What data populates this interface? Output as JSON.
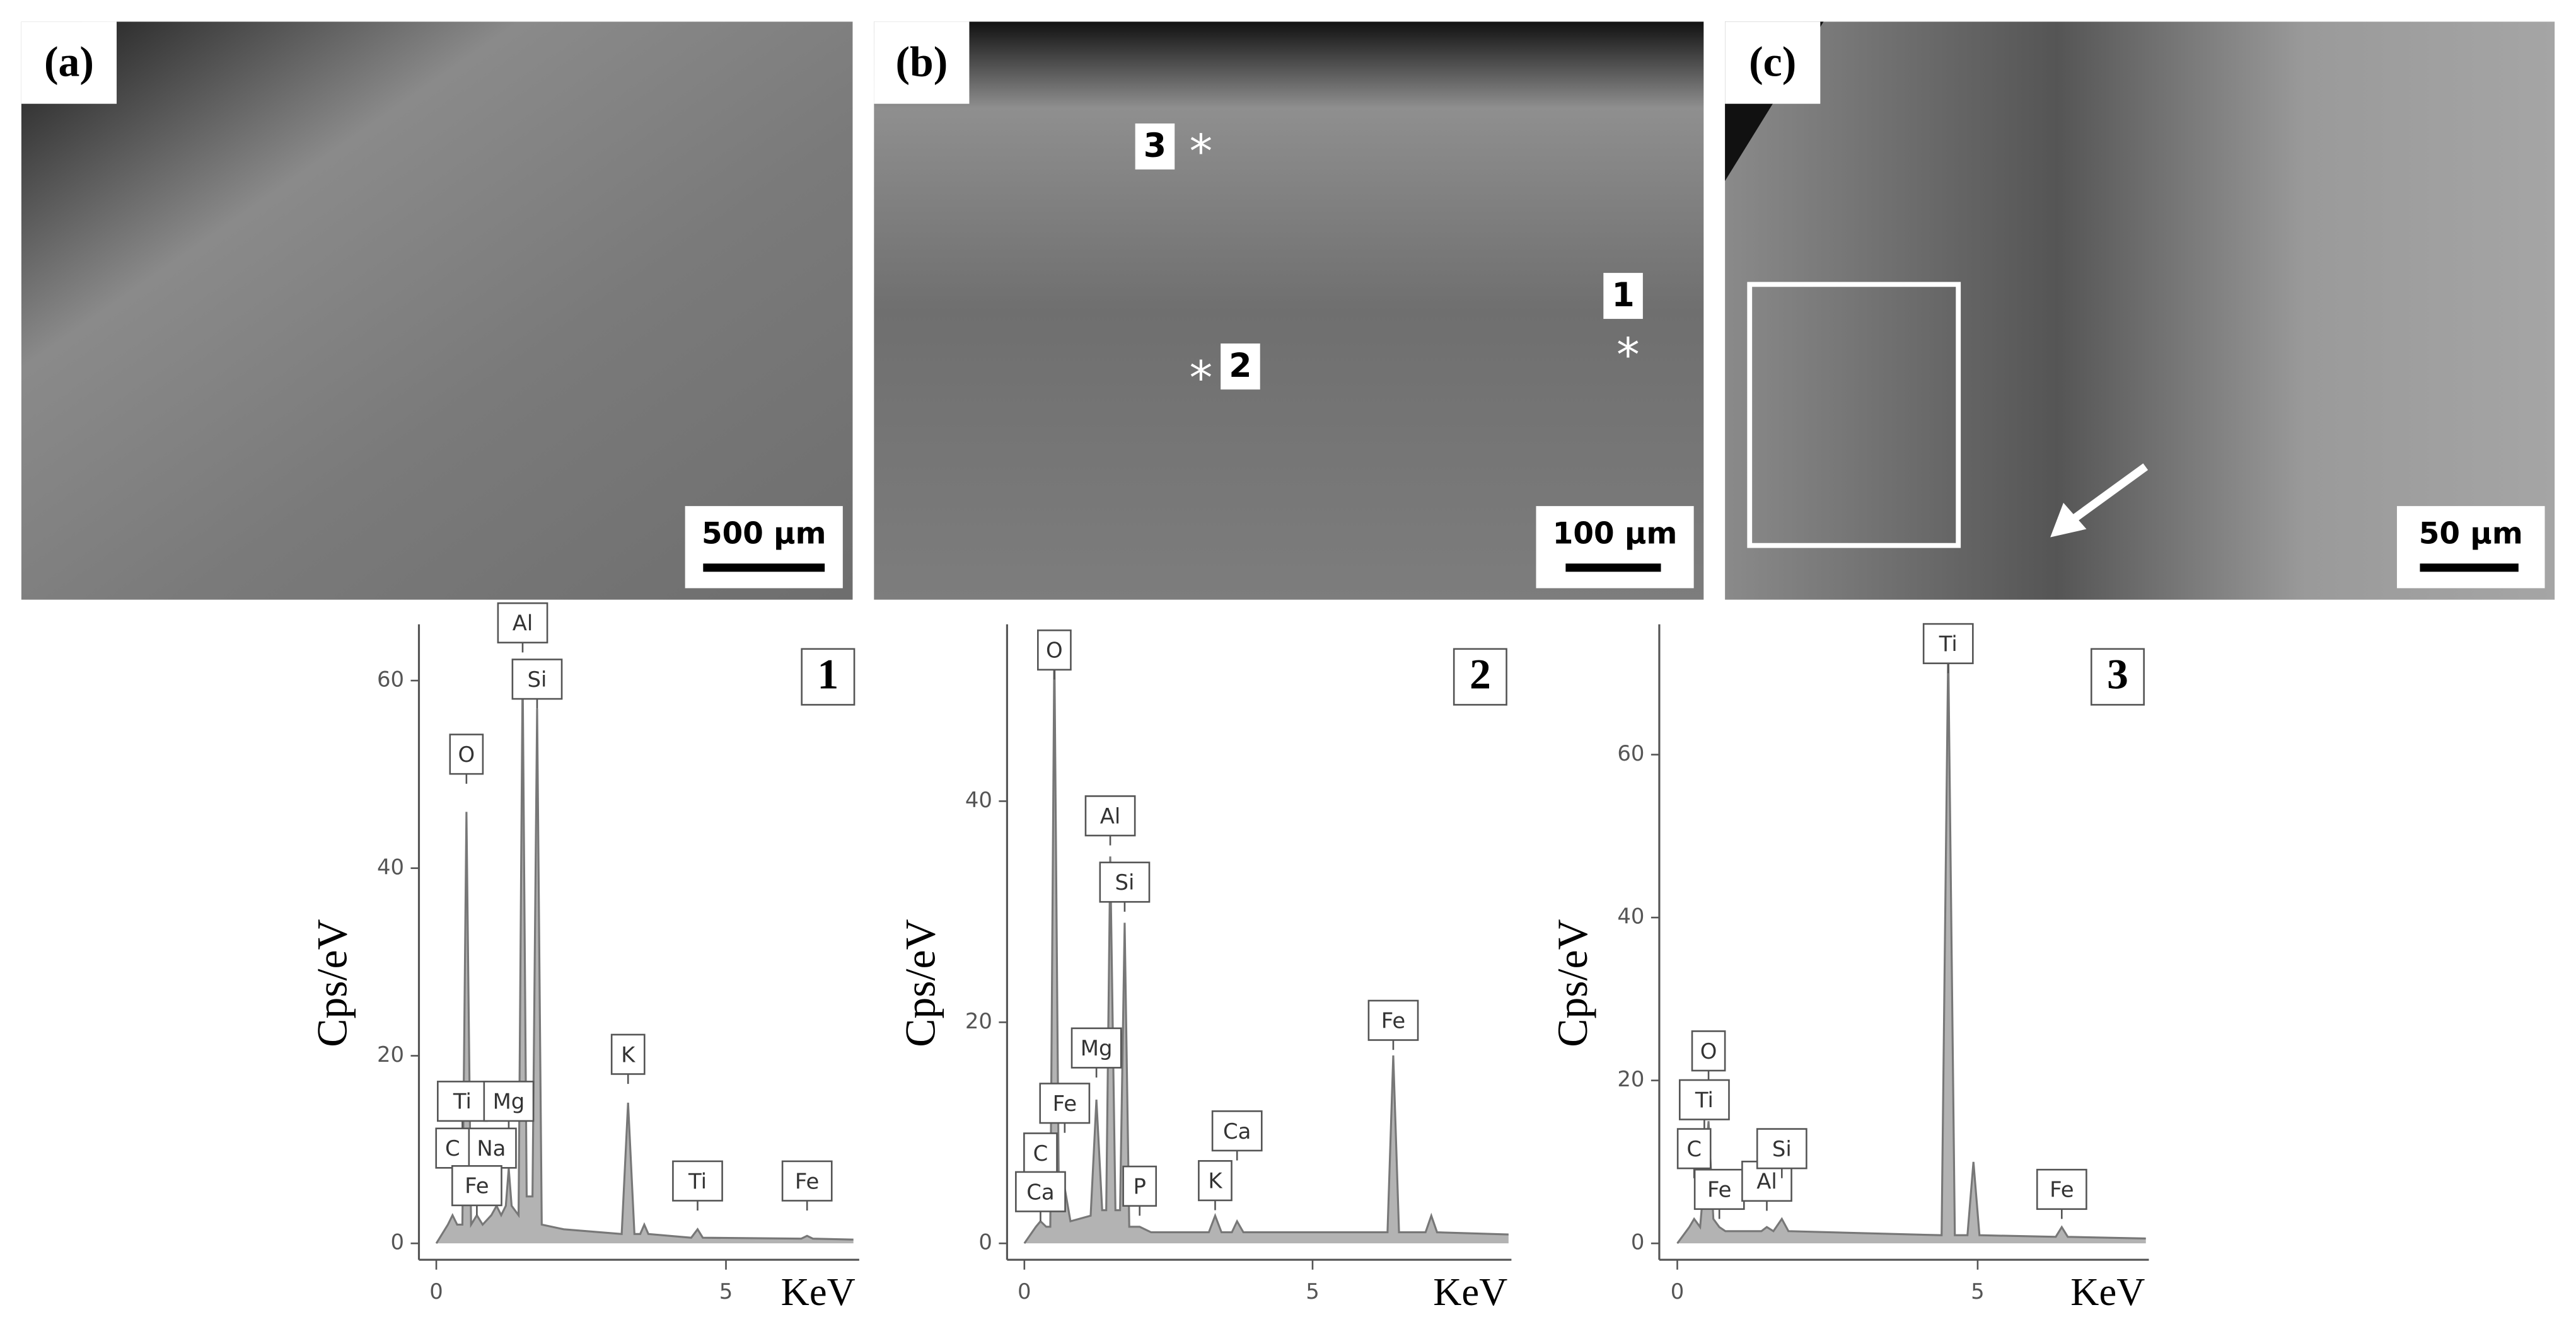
{
  "images": [
    {
      "label": "(a)",
      "scale_bar": "500 µm"
    },
    {
      "label": "(b)",
      "scale_bar": "100 µm",
      "markers": [
        "3",
        "2",
        "1"
      ]
    },
    {
      "label": "(c)",
      "scale_bar": "50 µm"
    }
  ],
  "chart_data": [
    {
      "type": "area",
      "panel": "1",
      "x_label": "KeV",
      "y_label": "Cps/eV",
      "color": "#b3b3b3",
      "x": [
        0,
        0.2,
        0.28,
        0.36,
        0.45,
        0.52,
        0.6,
        0.7,
        0.8,
        0.95,
        1.04,
        1.12,
        1.2,
        1.25,
        1.3,
        1.42,
        1.49,
        1.56,
        1.66,
        1.74,
        1.82,
        2.2,
        3.2,
        3.31,
        3.42,
        3.52,
        3.59,
        3.66,
        4.4,
        4.51,
        4.6,
        6.3,
        6.4,
        6.5,
        7.2
      ],
      "values": [
        0,
        2,
        3,
        2,
        2,
        46,
        2,
        3,
        2,
        3,
        4,
        3,
        4,
        8,
        4,
        3,
        61,
        5,
        5,
        57,
        2,
        1.5,
        1,
        15,
        1,
        1,
        2,
        1,
        0.6,
        1.5,
        0.6,
        0.5,
        0.8,
        0.5,
        0.4
      ],
      "xlim": [
        -0.3,
        7.3
      ],
      "ylim": [
        0,
        66
      ],
      "xticks": [
        0,
        5
      ],
      "yticks": [
        0,
        20,
        40,
        60
      ],
      "annotations": [
        {
          "text": "O",
          "x": 0.52,
          "y": 49
        },
        {
          "text": "Al",
          "x": 1.49,
          "y": 63
        },
        {
          "text": "Si",
          "x": 1.74,
          "y": 57
        },
        {
          "text": "Ti",
          "x": 0.45,
          "y": 12
        },
        {
          "text": "Mg",
          "x": 1.25,
          "y": 12
        },
        {
          "text": "Na",
          "x": 0.95,
          "y": 7
        },
        {
          "text": "C",
          "x": 0.28,
          "y": 7
        },
        {
          "text": "Fe",
          "x": 0.7,
          "y": 3
        },
        {
          "text": "K",
          "x": 3.31,
          "y": 17
        },
        {
          "text": "Ti",
          "x": 4.51,
          "y": 3.5
        },
        {
          "text": "Fe",
          "x": 6.4,
          "y": 3.5
        }
      ]
    },
    {
      "type": "area",
      "panel": "2",
      "x_label": "KeV",
      "y_label": "Cps/eV",
      "color": "#b3b3b3",
      "x": [
        0,
        0.2,
        0.28,
        0.38,
        0.45,
        0.52,
        0.6,
        0.7,
        0.8,
        1.15,
        1.25,
        1.35,
        1.42,
        1.49,
        1.58,
        1.66,
        1.74,
        1.82,
        2.0,
        2.2,
        3.2,
        3.31,
        3.42,
        3.6,
        3.69,
        3.8,
        6.3,
        6.4,
        6.5,
        6.96,
        7.06,
        7.16,
        8.4
      ],
      "values": [
        0,
        1.5,
        2,
        1.5,
        1.5,
        54,
        3,
        5,
        2,
        2.5,
        13,
        3,
        3,
        35,
        3,
        3,
        29,
        1.5,
        1.5,
        1,
        1,
        2.5,
        1,
        1,
        2,
        1,
        1,
        17,
        1,
        1,
        2.5,
        1,
        0.8
      ],
      "xlim": [
        -0.3,
        8.45
      ],
      "ylim": [
        0,
        56
      ],
      "xticks": [
        0,
        5
      ],
      "yticks": [
        0,
        20,
        40
      ],
      "annotations": [
        {
          "text": "O",
          "x": 0.52,
          "y": 51
        },
        {
          "text": "Al",
          "x": 1.49,
          "y": 36
        },
        {
          "text": "Si",
          "x": 1.74,
          "y": 30
        },
        {
          "text": "Mg",
          "x": 1.25,
          "y": 15
        },
        {
          "text": "Fe",
          "x": 0.7,
          "y": 10
        },
        {
          "text": "C",
          "x": 0.28,
          "y": 5.5
        },
        {
          "text": "Ca",
          "x": 0.28,
          "y": 2
        },
        {
          "text": "P",
          "x": 2.0,
          "y": 2.5
        },
        {
          "text": "K",
          "x": 3.31,
          "y": 3
        },
        {
          "text": "Ca",
          "x": 3.69,
          "y": 7.5
        },
        {
          "text": "Fe",
          "x": 6.4,
          "y": 17.5
        }
      ]
    },
    {
      "type": "area",
      "panel": "3",
      "x_label": "KeV",
      "y_label": "Cps/eV",
      "color": "#b3b3b3",
      "x": [
        0,
        0.2,
        0.28,
        0.38,
        0.45,
        0.52,
        0.6,
        0.7,
        0.8,
        1.4,
        1.49,
        1.6,
        1.74,
        1.85,
        4.4,
        4.51,
        4.62,
        4.83,
        4.93,
        5.03,
        6.3,
        6.4,
        6.5,
        7.8
      ],
      "values": [
        0,
        2,
        3,
        2,
        8,
        15,
        3,
        2,
        1.5,
        1.5,
        2,
        1.5,
        3,
        1.5,
        1,
        73,
        1,
        1,
        10,
        1,
        0.8,
        2,
        0.8,
        0.6
      ],
      "xlim": [
        -0.3,
        7.85
      ],
      "ylim": [
        0,
        76
      ],
      "xticks": [
        0,
        5
      ],
      "yticks": [
        0,
        20,
        40,
        60
      ],
      "annotations": [
        {
          "text": "Ti",
          "x": 4.51,
          "y": 70
        },
        {
          "text": "O",
          "x": 0.52,
          "y": 20
        },
        {
          "text": "Ti",
          "x": 0.45,
          "y": 14
        },
        {
          "text": "C",
          "x": 0.28,
          "y": 8
        },
        {
          "text": "Fe",
          "x": 0.7,
          "y": 3
        },
        {
          "text": "Al",
          "x": 1.49,
          "y": 4
        },
        {
          "text": "Si",
          "x": 1.74,
          "y": 8
        },
        {
          "text": "Fe",
          "x": 6.4,
          "y": 3
        }
      ]
    }
  ]
}
